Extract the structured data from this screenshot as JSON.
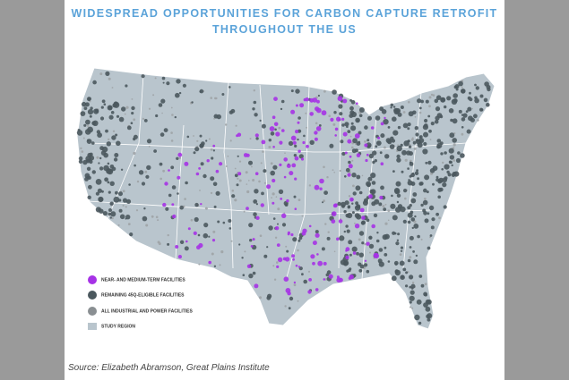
{
  "header": {
    "title": [
      "WIDESPREAD OPPORTUNITIES FOR CARBON CAPTURE RETROFIT",
      "THROUGHOUT THE US"
    ]
  },
  "legend": {
    "items": [
      {
        "label": "NEAR- AND MEDIUM-TERM FACILITIES"
      },
      {
        "label": "REMAINING 45Q-ELIGIBLE FACILITIES"
      },
      {
        "label": "ALL INDUSTRIAL AND POWER FACILITIES"
      },
      {
        "label": "STUDY REGION"
      }
    ]
  },
  "source": "Source: Elizabeth Abramson, Great Plains Institute"
}
